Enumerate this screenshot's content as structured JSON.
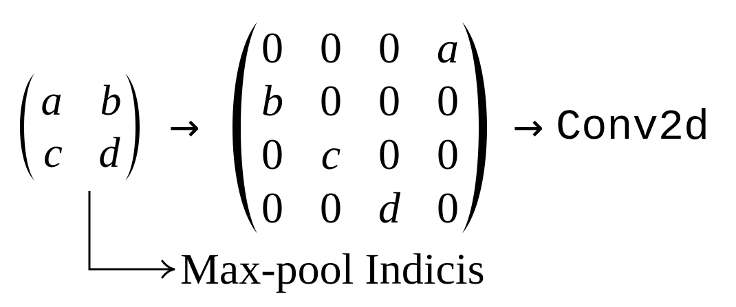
{
  "input_matrix": {
    "rows": [
      [
        "a",
        "b"
      ],
      [
        "c",
        "d"
      ]
    ]
  },
  "unpooled_matrix": {
    "rows": [
      [
        "0",
        "0",
        "0",
        "a"
      ],
      [
        "b",
        "0",
        "0",
        "0"
      ],
      [
        "0",
        "c",
        "0",
        "0"
      ],
      [
        "0",
        "0",
        "d",
        "0"
      ]
    ]
  },
  "arrow_symbol": "→",
  "operation_label": "Conv2d",
  "indices_label": "Max-pool Indicis"
}
